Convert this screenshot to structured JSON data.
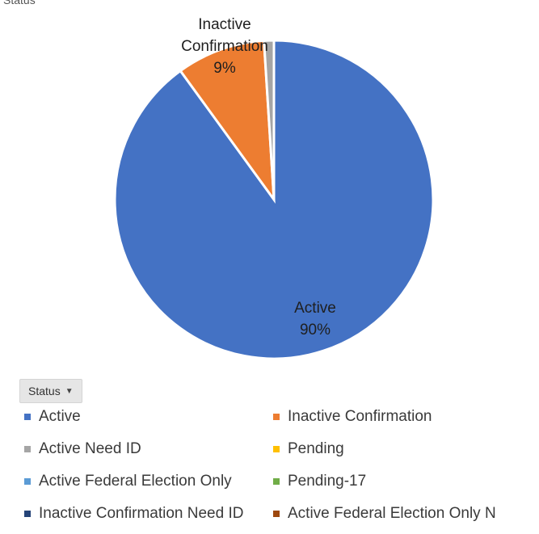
{
  "top_label": "Status",
  "filter_button": {
    "label": "Status",
    "caret": "▼"
  },
  "chart_data": {
    "type": "pie",
    "title": "",
    "slices": [
      {
        "name": "Active",
        "value": 90,
        "label": "Active",
        "pct_label": "90%",
        "color": "#4472c4"
      },
      {
        "name": "Inactive Confirmation",
        "value": 9,
        "label": "Inactive Confirmation",
        "pct_label": "9%",
        "color": "#ed7d31"
      },
      {
        "name": "Active Need ID",
        "value": 1,
        "label": "",
        "pct_label": "",
        "color": "#a5a5a5"
      },
      {
        "name": "Pending",
        "value": 0,
        "label": "",
        "pct_label": "",
        "color": "#ffc000"
      },
      {
        "name": "Active Federal Election Only",
        "value": 0,
        "label": "",
        "pct_label": "",
        "color": "#5b9bd5"
      },
      {
        "name": "Pending-17",
        "value": 0,
        "label": "",
        "pct_label": "",
        "color": "#70ad47"
      },
      {
        "name": "Inactive Confirmation Need ID",
        "value": 0,
        "label": "",
        "pct_label": "",
        "color": "#264478"
      },
      {
        "name": "Active Federal Election Only N",
        "value": 0,
        "label": "",
        "pct_label": "",
        "color": "#9e480e"
      }
    ],
    "legend": {
      "placement": "bottom",
      "items": [
        {
          "label": "Active",
          "color": "#4472c4"
        },
        {
          "label": "Inactive Confirmation",
          "color": "#ed7d31"
        },
        {
          "label": "Active Need ID",
          "color": "#a5a5a5"
        },
        {
          "label": "Pending",
          "color": "#ffc000"
        },
        {
          "label": "Active Federal Election Only",
          "color": "#5b9bd5"
        },
        {
          "label": "Pending-17",
          "color": "#70ad47"
        },
        {
          "label": "Inactive Confirmation Need ID",
          "color": "#264478"
        },
        {
          "label": "Active Federal Election Only N",
          "color": "#9e480e"
        }
      ]
    }
  }
}
